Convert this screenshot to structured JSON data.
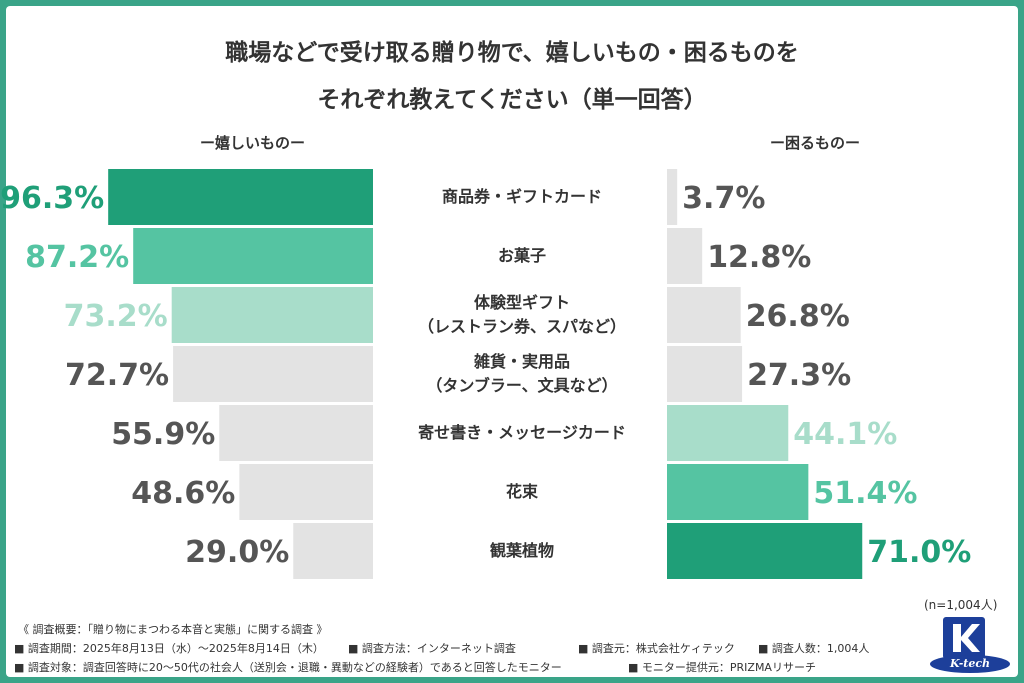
{
  "title": {
    "line1": "職場などで受け取る贈り物で、嬉しいもの・困るものを",
    "line2": "それぞれ教えてください（単一回答）"
  },
  "left_header": "ー嬉しいものー",
  "right_header": "ー困るものー",
  "sample_note": "(n=1,004人)",
  "footer": {
    "line1": "《 調査概要：「贈り物にまつわる本音と実態」に関する調査 》",
    "period": "■ 調査期間：2025年8月13日（水）〜2025年8月14日（木）",
    "method": "■ 調査方法：インターネット調査",
    "org": "■ 調査元：株式会社ケィテック",
    "count": "■ 調査人数：1,004人",
    "target": "■ 調査対象：調査回答時に20〜50代の社会人（送別会・退職・異動などの経験者）であると回答したモニター",
    "provider": "■ モニター提供元：PRIZMAリサーチ"
  },
  "logo_text": "K-tech",
  "colors": {
    "dark": "#1f9f78",
    "mid": "#55c4a2",
    "light": "#a8ddca",
    "gray": "#e3e3e3",
    "gray_text": "#555555"
  },
  "chart_data": {
    "type": "bar",
    "categories": [
      [
        "商品券・ギフトカード"
      ],
      [
        "お菓子"
      ],
      [
        "体験型ギフト",
        "（レストラン券、スパなど）"
      ],
      [
        "雑貨・実用品",
        "（タンブラー、文具など）"
      ],
      [
        "寄せ書き・メッセージカード"
      ],
      [
        "花束"
      ],
      [
        "観葉植物"
      ]
    ],
    "series": [
      {
        "name": "ー嬉しいものー",
        "values": [
          96.3,
          87.2,
          73.2,
          72.7,
          55.9,
          48.6,
          29.0
        ],
        "labels": [
          "96.3%",
          "87.2%",
          "73.2%",
          "72.7%",
          "55.9%",
          "48.6%",
          "29.0%"
        ],
        "direction": "left",
        "styles": [
          "dark",
          "mid",
          "light",
          "gray",
          "gray",
          "gray",
          "gray"
        ]
      },
      {
        "name": "ー困るものー",
        "values": [
          3.7,
          12.8,
          26.8,
          27.3,
          44.1,
          51.4,
          71.0
        ],
        "labels": [
          "3.7%",
          "12.8%",
          "26.8%",
          "27.3%",
          "44.1%",
          "51.4%",
          "71.0%"
        ],
        "direction": "right",
        "styles": [
          "gray",
          "gray",
          "gray",
          "gray",
          "light",
          "mid",
          "dark"
        ]
      }
    ],
    "xlim": [
      0,
      100
    ],
    "grid": false,
    "legend": "none"
  }
}
